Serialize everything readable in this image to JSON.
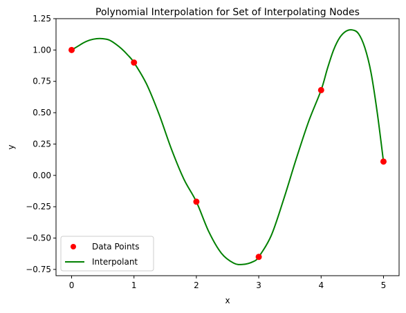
{
  "chart_data": {
    "type": "line",
    "title": "Polynomial Interpolation for Set of Interpolating Nodes",
    "xlabel": "x",
    "ylabel": "y",
    "xlim": [
      -0.25,
      5.25
    ],
    "ylim": [
      -0.8,
      1.25
    ],
    "x_ticks": [
      0,
      1,
      2,
      3,
      4,
      5
    ],
    "x_tick_labels": [
      "0",
      "1",
      "2",
      "3",
      "4",
      "5"
    ],
    "y_ticks": [
      -0.75,
      -0.5,
      -0.25,
      0.0,
      0.25,
      0.5,
      0.75,
      1.0,
      1.25
    ],
    "y_tick_labels": [
      "−0.75",
      "−0.50",
      "−0.25",
      "0.00",
      "0.25",
      "0.50",
      "0.75",
      "1.00",
      "1.25"
    ],
    "grid": false,
    "legend_position": "lower-left",
    "series": [
      {
        "name": "Data Points",
        "kind": "scatter",
        "color": "#ff0000",
        "x": [
          0,
          1,
          2,
          3,
          4,
          5
        ],
        "y": [
          1.0,
          0.9,
          -0.21,
          -0.65,
          0.68,
          0.11
        ]
      },
      {
        "name": "Interpolant",
        "kind": "line",
        "color": "#008000",
        "x": [
          0,
          0.1,
          0.2,
          0.3,
          0.4,
          0.5,
          0.6,
          0.7,
          0.8,
          0.9,
          1.0,
          1.2,
          1.4,
          1.6,
          1.8,
          2.0,
          2.2,
          2.4,
          2.6,
          2.75,
          2.9,
          3.0,
          3.2,
          3.4,
          3.6,
          3.8,
          4.0,
          4.1,
          4.2,
          4.3,
          4.4,
          4.5,
          4.6,
          4.7,
          4.8,
          4.9,
          5.0
        ],
        "y": [
          1.0,
          1.03,
          1.06,
          1.08,
          1.09,
          1.09,
          1.08,
          1.05,
          1.01,
          0.96,
          0.9,
          0.73,
          0.49,
          0.21,
          -0.03,
          -0.21,
          -0.45,
          -0.62,
          -0.7,
          -0.71,
          -0.69,
          -0.65,
          -0.48,
          -0.19,
          0.13,
          0.43,
          0.68,
          0.85,
          1.0,
          1.1,
          1.15,
          1.16,
          1.13,
          1.02,
          0.82,
          0.5,
          0.11
        ]
      }
    ]
  }
}
